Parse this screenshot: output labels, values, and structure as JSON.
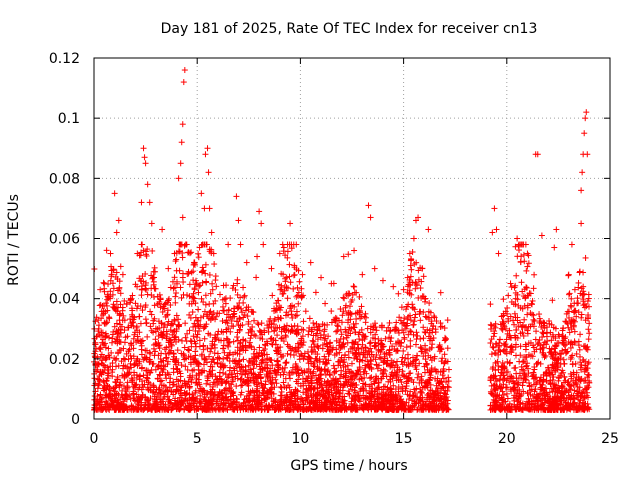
{
  "chart_data": {
    "type": "scatter",
    "title": "Day 181 of 2025, Rate Of TEC Index for receiver cn13",
    "xlabel": "GPS time / hours",
    "ylabel": "ROTI / TECUs",
    "xlim": [
      0,
      25
    ],
    "ylim": [
      0,
      0.12
    ],
    "xticks": [
      0,
      5,
      10,
      15,
      20,
      25
    ],
    "yticks": [
      0,
      0.02,
      0.04,
      0.06,
      0.08,
      0.1,
      0.12
    ],
    "xtick_labels": [
      "0",
      "5",
      "10",
      "15",
      "20",
      "25"
    ],
    "ytick_labels": [
      "0",
      "0.02",
      "0.04",
      "0.06",
      "0.08",
      "0.1",
      "0.12"
    ],
    "grid": true,
    "marker": "+",
    "color": "#ff0000",
    "data_gap_hours": [
      17.2,
      19.2
    ],
    "series": [
      {
        "name": "ROTI",
        "points": [
          [
            0.3,
            0.043
          ],
          [
            0.5,
            0.045
          ],
          [
            0.8,
            0.055
          ],
          [
            1.0,
            0.075
          ],
          [
            1.1,
            0.062
          ],
          [
            1.2,
            0.066
          ],
          [
            1.4,
            0.048
          ],
          [
            2.1,
            0.055
          ],
          [
            2.3,
            0.072
          ],
          [
            2.4,
            0.09
          ],
          [
            2.45,
            0.087
          ],
          [
            2.5,
            0.085
          ],
          [
            2.6,
            0.078
          ],
          [
            2.7,
            0.072
          ],
          [
            2.8,
            0.065
          ],
          [
            3.3,
            0.063
          ],
          [
            3.6,
            0.05
          ],
          [
            3.9,
            0.055
          ],
          [
            4.1,
            0.08
          ],
          [
            4.2,
            0.085
          ],
          [
            4.25,
            0.092
          ],
          [
            4.3,
            0.098
          ],
          [
            4.35,
            0.112
          ],
          [
            4.4,
            0.116
          ],
          [
            4.3,
            0.067
          ],
          [
            5.2,
            0.075
          ],
          [
            5.35,
            0.07
          ],
          [
            5.4,
            0.088
          ],
          [
            5.5,
            0.09
          ],
          [
            5.55,
            0.082
          ],
          [
            5.6,
            0.07
          ],
          [
            5.7,
            0.062
          ],
          [
            5.8,
            0.055
          ],
          [
            6.5,
            0.058
          ],
          [
            6.9,
            0.074
          ],
          [
            7.0,
            0.066
          ],
          [
            7.1,
            0.058
          ],
          [
            7.4,
            0.052
          ],
          [
            7.9,
            0.054
          ],
          [
            8.0,
            0.069
          ],
          [
            8.1,
            0.065
          ],
          [
            8.2,
            0.058
          ],
          [
            8.6,
            0.05
          ],
          [
            9.0,
            0.055
          ],
          [
            9.2,
            0.057
          ],
          [
            9.5,
            0.065
          ],
          [
            9.8,
            0.058
          ],
          [
            10.1,
            0.048
          ],
          [
            10.5,
            0.052
          ],
          [
            11.0,
            0.047
          ],
          [
            11.5,
            0.045
          ],
          [
            12.1,
            0.054
          ],
          [
            12.6,
            0.056
          ],
          [
            13.0,
            0.048
          ],
          [
            13.3,
            0.071
          ],
          [
            13.4,
            0.067
          ],
          [
            13.6,
            0.05
          ],
          [
            14.0,
            0.046
          ],
          [
            14.5,
            0.044
          ],
          [
            15.0,
            0.043
          ],
          [
            15.3,
            0.055
          ],
          [
            15.5,
            0.06
          ],
          [
            15.6,
            0.066
          ],
          [
            15.7,
            0.067
          ],
          [
            15.9,
            0.05
          ],
          [
            16.2,
            0.063
          ],
          [
            16.8,
            0.042
          ],
          [
            19.3,
            0.062
          ],
          [
            19.4,
            0.07
          ],
          [
            19.5,
            0.063
          ],
          [
            19.6,
            0.055
          ],
          [
            20.5,
            0.06
          ],
          [
            20.6,
            0.058
          ],
          [
            21.0,
            0.055
          ],
          [
            21.4,
            0.088
          ],
          [
            21.5,
            0.088
          ],
          [
            21.7,
            0.061
          ],
          [
            22.3,
            0.057
          ],
          [
            22.4,
            0.063
          ],
          [
            23.0,
            0.048
          ],
          [
            23.3,
            0.043
          ],
          [
            23.6,
            0.076
          ],
          [
            23.65,
            0.082
          ],
          [
            23.7,
            0.088
          ],
          [
            23.75,
            0.095
          ],
          [
            23.8,
            0.1
          ],
          [
            23.85,
            0.102
          ],
          [
            23.9,
            0.088
          ],
          [
            23.6,
            0.065
          ],
          [
            23.7,
            0.044
          ]
        ]
      }
    ]
  }
}
